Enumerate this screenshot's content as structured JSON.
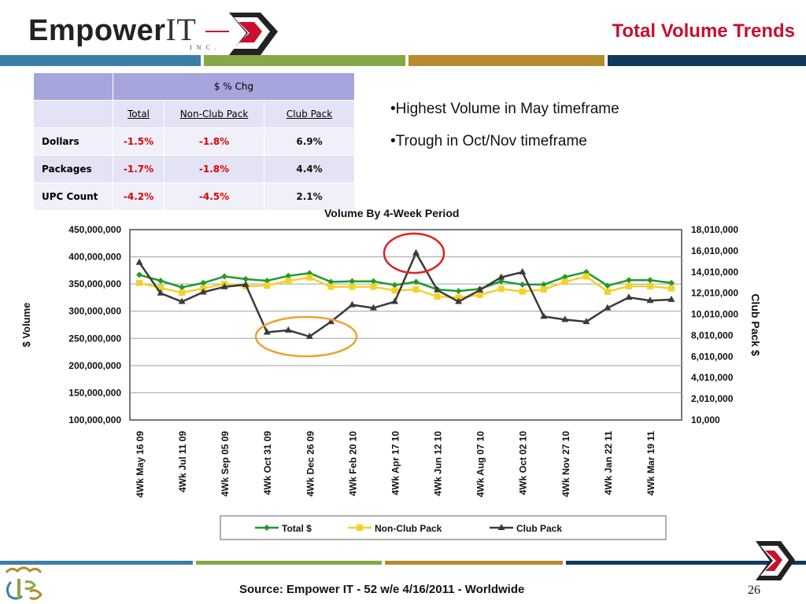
{
  "header": {
    "logo_brand": "Empower",
    "logo_it": "IT",
    "logo_inc": "INC.",
    "title": "Total Volume Trends"
  },
  "colors": {
    "band_top": [
      "#3b7fa8",
      "#86a845",
      "#b58b2c",
      "#0f3a5c"
    ],
    "accent_title": "#c8102e",
    "series_total": "#1f9a2a",
    "series_nonclub": "#f2d22a",
    "series_club": "#3a3a3a",
    "circle_red": "#e02020",
    "circle_orange": "#f0a030"
  },
  "table": {
    "header": "$ % Chg",
    "columns": [
      "Total",
      "Non-Club Pack",
      "Club Pack"
    ],
    "rows": [
      {
        "label": "Dollars",
        "total": "-1.5%",
        "nonclub": "-1.8%",
        "club": "6.9%"
      },
      {
        "label": "Packages",
        "total": "-1.7%",
        "nonclub": "-1.8%",
        "club": "4.4%"
      },
      {
        "label": "UPC Count",
        "total": "-4.2%",
        "nonclub": "-4.5%",
        "club": "2.1%"
      }
    ]
  },
  "bullets": [
    "•Highest Volume in May timeframe",
    "•Trough in Oct/Nov timeframe"
  ],
  "chart_data": {
    "type": "line",
    "title": "Volume By 4-Week Period",
    "ylabel": "$ Volume",
    "y2label": "Club Pack $",
    "ylim": [
      100000000,
      450000000
    ],
    "y2lim": [
      10000,
      18010000
    ],
    "yticks": [
      "450,000,000",
      "400,000,000",
      "350,000,000",
      "300,000,000",
      "250,000,000",
      "200,000,000",
      "150,000,000",
      "100,000,000"
    ],
    "y2ticks": [
      "18,010,000",
      "16,010,000",
      "14,010,000",
      "12,010,000",
      "10,010,000",
      "8,010,000",
      "6,010,000",
      "4,010,000",
      "2,010,000",
      "10,000"
    ],
    "xtick_labels": [
      "4Wk May 16 09",
      "4Wk Jul 11 09",
      "4Wk Sep 05 09",
      "4Wk Oct 31 09",
      "4Wk Dec 26 09",
      "4Wk Feb 20 10",
      "4Wk Apr 17 10",
      "4Wk Jun 12 10",
      "4Wk Aug 07 10",
      "4Wk Oct 02 10",
      "4Wk Nov 27 10",
      "4Wk Jan 22 11",
      "4Wk Mar 19 11"
    ],
    "grid": true,
    "legend": "bottom",
    "series": [
      {
        "name": "Total $",
        "axis": "left",
        "values": [
          367000000,
          356000000,
          344000000,
          352000000,
          364000000,
          359000000,
          356000000,
          365000000,
          370000000,
          354000000,
          355000000,
          355000000,
          348000000,
          354000000,
          340000000,
          337000000,
          341000000,
          355000000,
          349000000,
          349000000,
          363000000,
          372000000,
          347000000,
          357000000,
          357000000,
          352000000
        ]
      },
      {
        "name": "Non-Club Pack",
        "axis": "left",
        "values": [
          352000000,
          343000000,
          334000000,
          342000000,
          350000000,
          346000000,
          347000000,
          356000000,
          362000000,
          345000000,
          345000000,
          345000000,
          338000000,
          340000000,
          327000000,
          325000000,
          330000000,
          341000000,
          336000000,
          340000000,
          354000000,
          364000000,
          336000000,
          346000000,
          346000000,
          342000000
        ]
      },
      {
        "name": "Club Pack",
        "axis": "right",
        "values": [
          14900000,
          12000000,
          11200000,
          12100000,
          12600000,
          12800000,
          8300000,
          8500000,
          7900000,
          9300000,
          10900000,
          10600000,
          11200000,
          15800000,
          12300000,
          11200000,
          12300000,
          13500000,
          14000000,
          9800000,
          9500000,
          9300000,
          10600000,
          11600000,
          11300000,
          11400000
        ]
      }
    ]
  },
  "footer": {
    "source": "Source:  Empower IT - 52 w/e 4/16/2011 - Worldwide",
    "page": "26"
  }
}
